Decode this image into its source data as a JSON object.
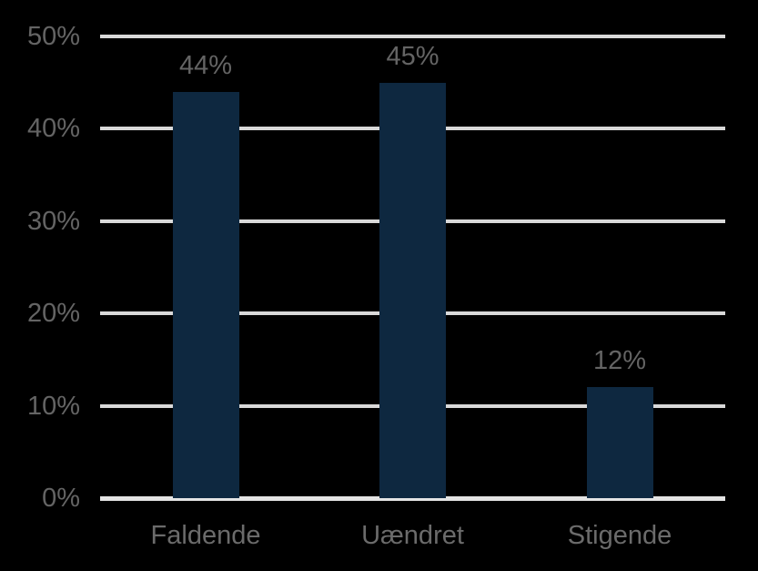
{
  "chart_data": {
    "type": "bar",
    "title": "",
    "xlabel": "",
    "ylabel": "",
    "categories": [
      "Faldende",
      "Uændret",
      "Stigende"
    ],
    "values": [
      44,
      45,
      12
    ],
    "data_labels": [
      "44%",
      "45%",
      "12%"
    ],
    "y_axis": {
      "tick_labels": [
        "50%",
        "40%",
        "30%",
        "20%",
        "10%",
        "0%"
      ],
      "tick_values": [
        50,
        40,
        30,
        20,
        10,
        0
      ],
      "ylim": [
        0,
        50
      ],
      "unit": "%"
    },
    "grid": true,
    "legend": "none",
    "colors": {
      "background": "#000000",
      "bar_fill": "#0e2840",
      "gridline": "#d9d9d9",
      "axis_line": "#e4e4e4",
      "tick_label_text": "#646464",
      "data_label_text": "#646464",
      "category_label_text": "#6b6b6b"
    }
  }
}
